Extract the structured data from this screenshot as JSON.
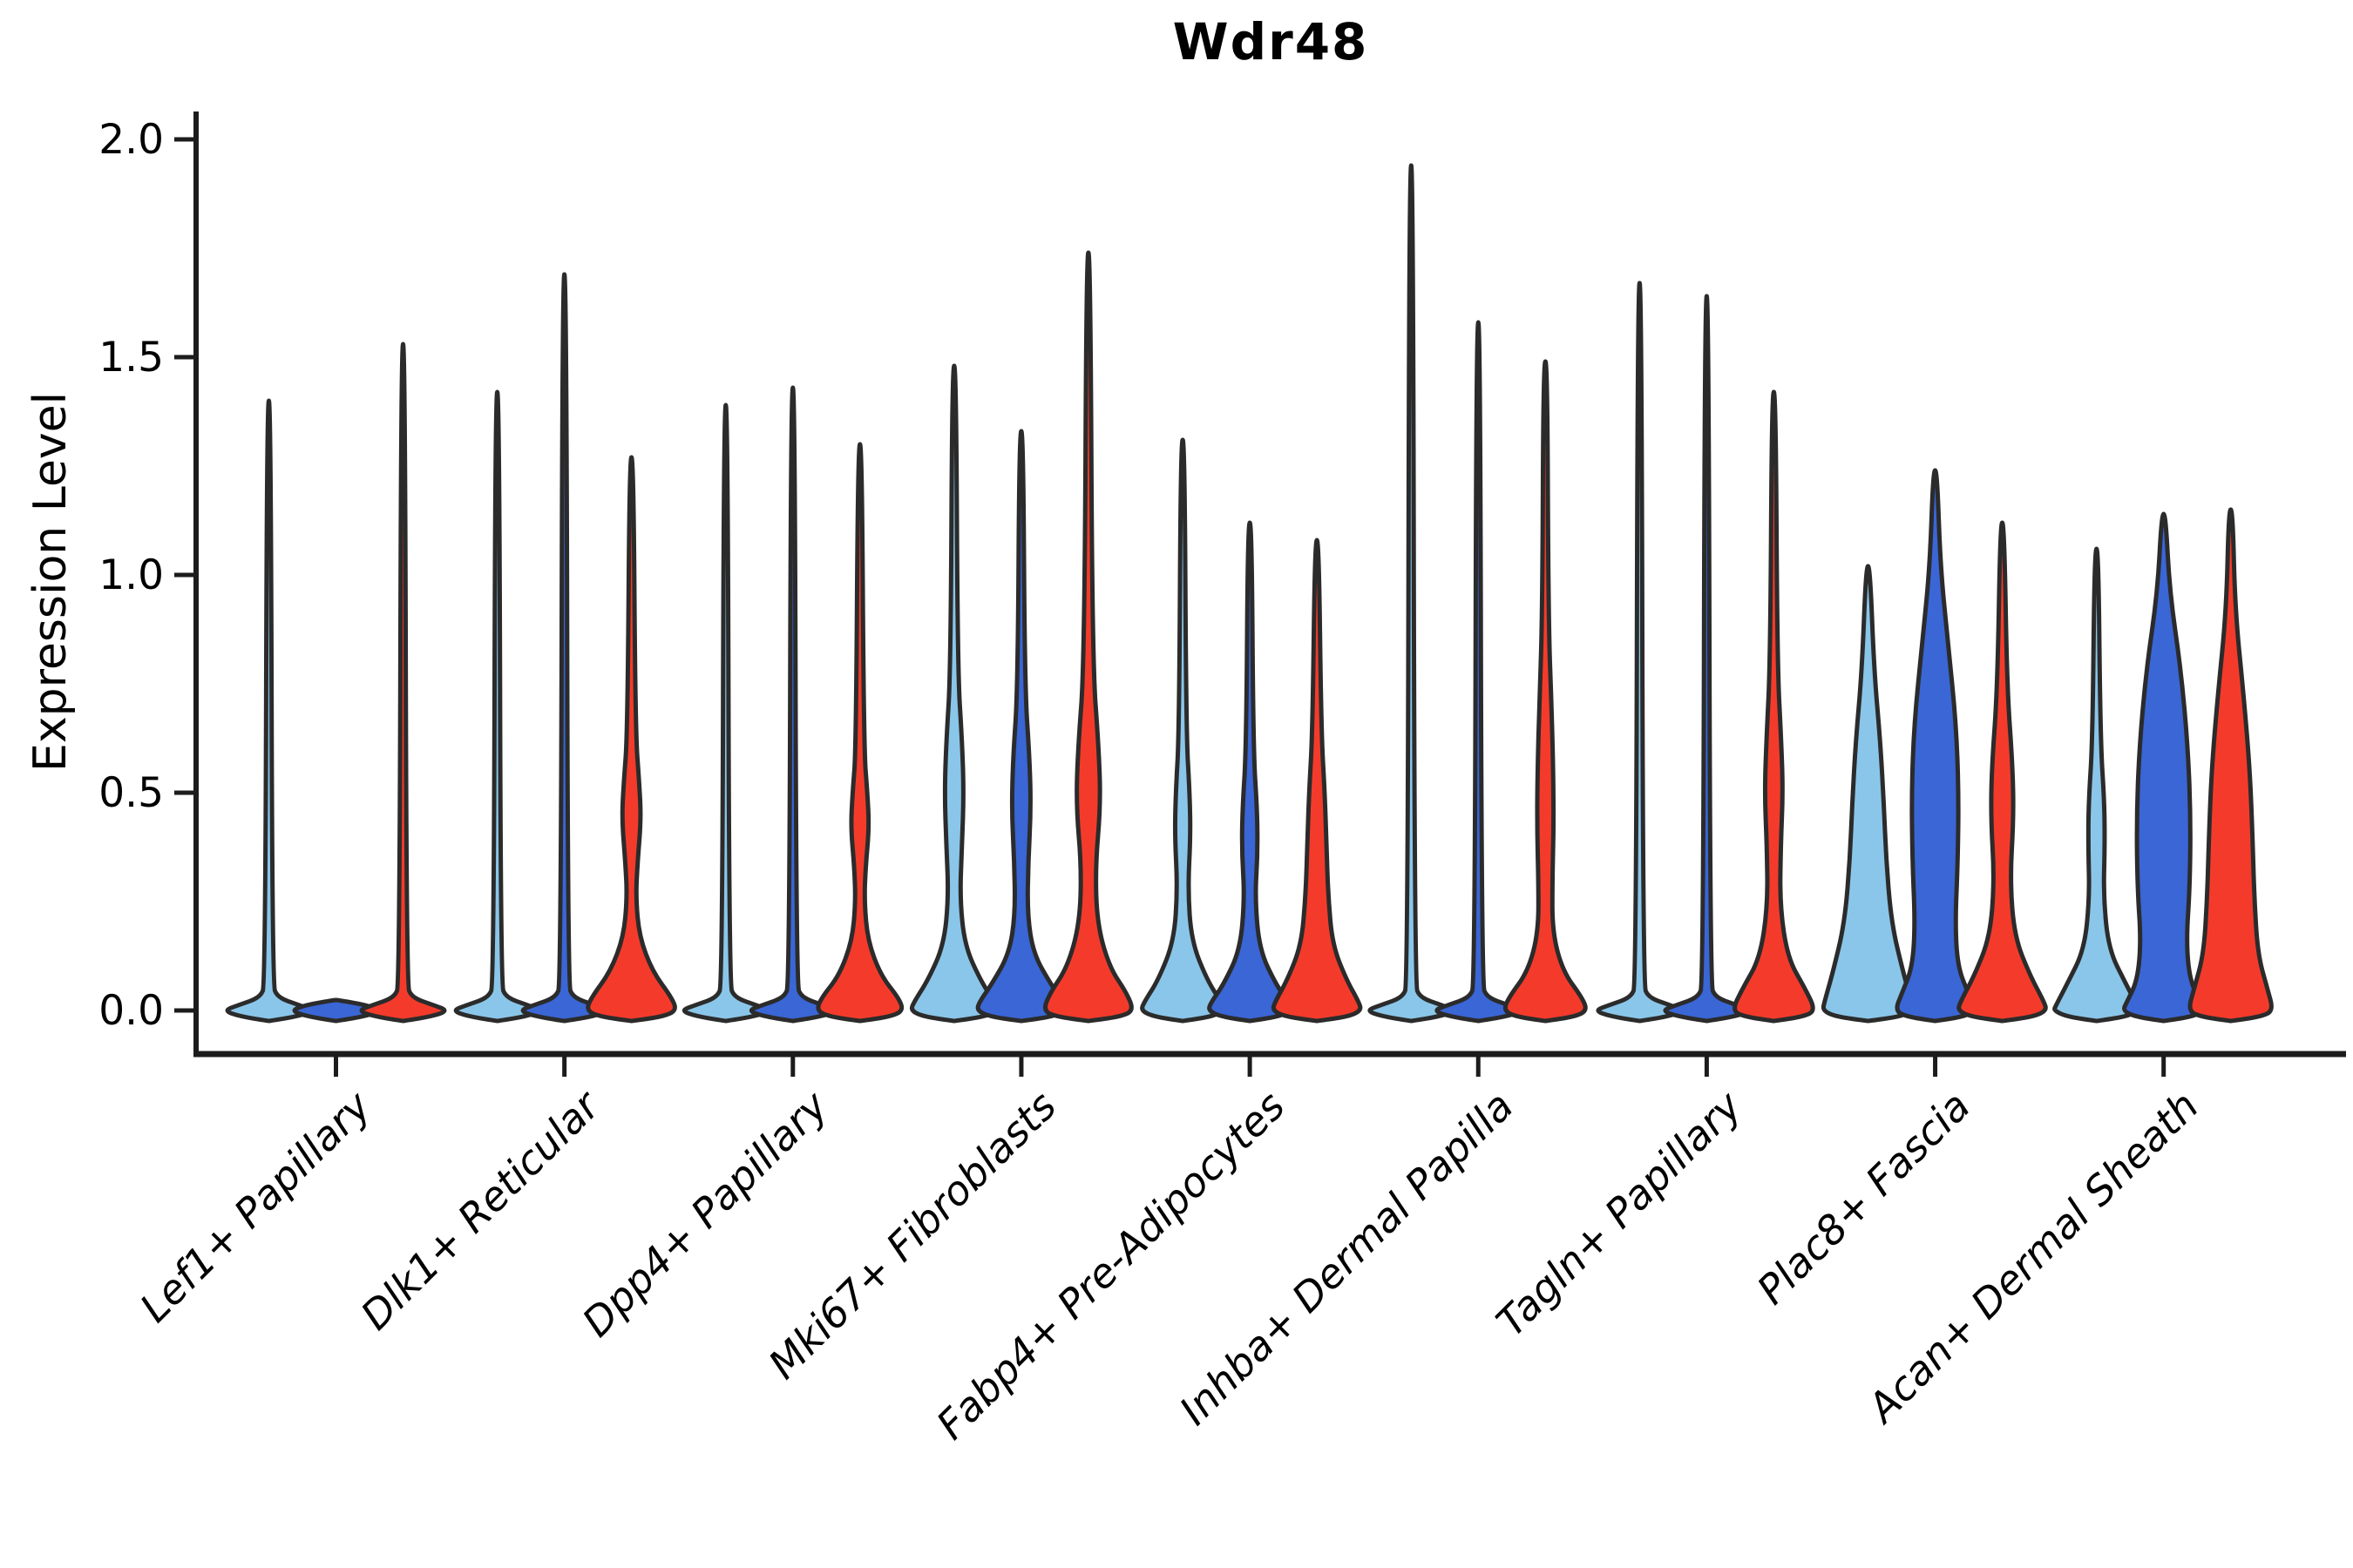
{
  "figure": {
    "title": "Wdr48",
    "ylabel": "Expression Level",
    "yticklabels": [
      "0.0",
      "0.5",
      "1.0",
      "1.5",
      "2.0"
    ]
  },
  "chart_data": {
    "type": "violin",
    "title": "Wdr48",
    "xlabel": "",
    "ylabel": "Expression Level",
    "ylim": [
      0,
      2.05
    ],
    "yticks": [
      0.0,
      0.5,
      1.0,
      1.5,
      2.0
    ],
    "grid": false,
    "legend": "none",
    "categories": [
      "Lef1+ Papillary",
      "Dlk1+ Reticular",
      "Dpp4+ Papillary",
      "Mki67+ Fibroblasts",
      "Fabp4+ Pre-Adipocytes",
      "Inhba+ Dermal Papilla",
      "Tagln+ Papillary",
      "Plac8+ Fascia",
      "Acan+ Dermal Sheath"
    ],
    "series": [
      {
        "id": "light_blue",
        "color": "#8AC6E9"
      },
      {
        "id": "blue",
        "color": "#3A66D6"
      },
      {
        "id": "red",
        "color": "#F43B2B"
      }
    ],
    "outline_color": "#2B2B2B",
    "violins": [
      {
        "category": "Lef1+ Papillary",
        "series": "light_blue",
        "max_expression": 1.4,
        "profile": [
          [
            1.4,
            2.2
          ],
          [
            0.06,
            4
          ],
          [
            0.03,
            10
          ],
          [
            0.013,
            34
          ],
          [
            0,
            52
          ],
          [
            -0.013,
            34
          ],
          [
            -0.024,
            0
          ]
        ]
      },
      {
        "category": "Lef1+ Papillary",
        "series": "blue",
        "max_expression": null,
        "profile": [
          [
            0.024,
            2
          ],
          [
            0.013,
            34
          ],
          [
            0,
            52
          ],
          [
            -0.013,
            34
          ],
          [
            -0.024,
            0
          ]
        ]
      },
      {
        "category": "Lef1+ Papillary",
        "series": "red",
        "max_expression": 1.53,
        "profile": [
          [
            1.53,
            2.2
          ],
          [
            0.06,
            4
          ],
          [
            0.03,
            10
          ],
          [
            0.013,
            34
          ],
          [
            0,
            52
          ],
          [
            -0.013,
            34
          ],
          [
            -0.024,
            0
          ]
        ]
      },
      {
        "category": "Dlk1+ Reticular",
        "series": "light_blue",
        "max_expression": 1.42,
        "profile": [
          [
            1.42,
            2.2
          ],
          [
            0.06,
            4
          ],
          [
            0.03,
            10
          ],
          [
            0.013,
            34
          ],
          [
            0,
            52
          ],
          [
            -0.013,
            34
          ],
          [
            -0.024,
            0
          ]
        ]
      },
      {
        "category": "Dlk1+ Reticular",
        "series": "blue",
        "max_expression": 1.69,
        "profile": [
          [
            1.69,
            2.2
          ],
          [
            0.06,
            4
          ],
          [
            0.03,
            10
          ],
          [
            0.013,
            34
          ],
          [
            0,
            52
          ],
          [
            -0.013,
            34
          ],
          [
            -0.024,
            0
          ]
        ]
      },
      {
        "category": "Dlk1+ Reticular",
        "series": "red",
        "max_expression": 1.27,
        "profile": [
          [
            1.27,
            2.2
          ],
          [
            0.64,
            4.5
          ],
          [
            0.52,
            9
          ],
          [
            0.44,
            11
          ],
          [
            0.34,
            7
          ],
          [
            0.26,
            5
          ],
          [
            0.17,
            9
          ],
          [
            0.09,
            24
          ],
          [
            0.03,
            46
          ],
          [
            0,
            52
          ],
          [
            -0.014,
            36
          ],
          [
            -0.024,
            0
          ]
        ]
      },
      {
        "category": "Dpp4+ Papillary",
        "series": "light_blue",
        "max_expression": 1.39,
        "profile": [
          [
            1.39,
            2.2
          ],
          [
            0.06,
            4
          ],
          [
            0.03,
            10
          ],
          [
            0.013,
            34
          ],
          [
            0,
            52
          ],
          [
            -0.013,
            34
          ],
          [
            -0.024,
            0
          ]
        ]
      },
      {
        "category": "Dpp4+ Papillary",
        "series": "blue",
        "max_expression": 1.43,
        "profile": [
          [
            1.43,
            2.2
          ],
          [
            0.06,
            4
          ],
          [
            0.03,
            10
          ],
          [
            0.013,
            34
          ],
          [
            0,
            52
          ],
          [
            -0.013,
            34
          ],
          [
            -0.024,
            0
          ]
        ]
      },
      {
        "category": "Dpp4+ Papillary",
        "series": "red",
        "max_expression": 1.3,
        "profile": [
          [
            1.3,
            2.2
          ],
          [
            0.6,
            4.5
          ],
          [
            0.5,
            8.5
          ],
          [
            0.42,
            10.5
          ],
          [
            0.33,
            6.5
          ],
          [
            0.25,
            5
          ],
          [
            0.16,
            9
          ],
          [
            0.08,
            24
          ],
          [
            0.03,
            44
          ],
          [
            0,
            50
          ],
          [
            -0.014,
            35
          ],
          [
            -0.024,
            0
          ]
        ]
      },
      {
        "category": "Mki67+ Fibroblasts",
        "series": "light_blue",
        "max_expression": 1.48,
        "profile": [
          [
            1.48,
            2.2
          ],
          [
            0.78,
            4
          ],
          [
            0.62,
            9
          ],
          [
            0.5,
            11
          ],
          [
            0.38,
            9
          ],
          [
            0.26,
            6.5
          ],
          [
            0.15,
            12
          ],
          [
            0.07,
            30
          ],
          [
            0.02,
            46
          ],
          [
            0,
            50
          ],
          [
            -0.014,
            35
          ],
          [
            -0.024,
            0
          ]
        ]
      },
      {
        "category": "Mki67+ Fibroblasts",
        "series": "blue",
        "max_expression": 1.33,
        "profile": [
          [
            1.33,
            2.2
          ],
          [
            0.74,
            4
          ],
          [
            0.58,
            9.5
          ],
          [
            0.46,
            11
          ],
          [
            0.34,
            8
          ],
          [
            0.22,
            7
          ],
          [
            0.13,
            14
          ],
          [
            0.06,
            34
          ],
          [
            0.02,
            48
          ],
          [
            0,
            51
          ],
          [
            -0.014,
            36
          ],
          [
            -0.024,
            0
          ]
        ]
      },
      {
        "category": "Mki67+ Fibroblasts",
        "series": "red",
        "max_expression": 1.74,
        "profile": [
          [
            1.74,
            2.2
          ],
          [
            0.8,
            4.5
          ],
          [
            0.6,
            12
          ],
          [
            0.47,
            14
          ],
          [
            0.33,
            8
          ],
          [
            0.2,
            10
          ],
          [
            0.1,
            24
          ],
          [
            0.04,
            44
          ],
          [
            0,
            52
          ],
          [
            -0.014,
            37
          ],
          [
            -0.024,
            0
          ]
        ]
      },
      {
        "category": "Fabp4+ Pre-Adipocytes",
        "series": "light_blue",
        "max_expression": 1.31,
        "profile": [
          [
            1.31,
            2.2
          ],
          [
            0.64,
            4
          ],
          [
            0.5,
            8
          ],
          [
            0.4,
            9
          ],
          [
            0.28,
            6
          ],
          [
            0.16,
            10
          ],
          [
            0.07,
            28
          ],
          [
            0.02,
            44
          ],
          [
            0,
            48
          ],
          [
            -0.014,
            33
          ],
          [
            -0.024,
            0
          ]
        ]
      },
      {
        "category": "Fabp4+ Pre-Adipocytes",
        "series": "blue",
        "max_expression": 1.12,
        "profile": [
          [
            1.12,
            2.2
          ],
          [
            0.6,
            4
          ],
          [
            0.46,
            8.5
          ],
          [
            0.36,
            9
          ],
          [
            0.26,
            6
          ],
          [
            0.14,
            11
          ],
          [
            0.06,
            30
          ],
          [
            0.02,
            44
          ],
          [
            0,
            48
          ],
          [
            -0.014,
            33
          ],
          [
            -0.024,
            0
          ]
        ]
      },
      {
        "category": "Fabp4+ Pre-Adipocytes",
        "series": "red",
        "max_expression": 1.08,
        "profile": [
          [
            1.08,
            2.2
          ],
          [
            0.64,
            5
          ],
          [
            0.5,
            9
          ],
          [
            0.38,
            11
          ],
          [
            0.26,
            13
          ],
          [
            0.15,
            18
          ],
          [
            0.07,
            34
          ],
          [
            0.02,
            48
          ],
          [
            0,
            51
          ],
          [
            -0.014,
            36
          ],
          [
            -0.024,
            0
          ]
        ]
      },
      {
        "category": "Inhba+ Dermal Papilla",
        "series": "light_blue",
        "max_expression": 1.94,
        "profile": [
          [
            1.94,
            2.2
          ],
          [
            0.06,
            4
          ],
          [
            0.03,
            10
          ],
          [
            0.013,
            34
          ],
          [
            0,
            52
          ],
          [
            -0.013,
            34
          ],
          [
            -0.024,
            0
          ]
        ]
      },
      {
        "category": "Inhba+ Dermal Papilla",
        "series": "blue",
        "max_expression": 1.58,
        "profile": [
          [
            1.58,
            2.2
          ],
          [
            0.06,
            4
          ],
          [
            0.03,
            10
          ],
          [
            0.013,
            34
          ],
          [
            0,
            52
          ],
          [
            -0.013,
            34
          ],
          [
            -0.024,
            0
          ]
        ]
      },
      {
        "category": "Inhba+ Dermal Papilla",
        "series": "red",
        "max_expression": 1.49,
        "profile": [
          [
            1.49,
            2.2
          ],
          [
            0.9,
            3.5
          ],
          [
            0.7,
            7
          ],
          [
            0.55,
            9
          ],
          [
            0.42,
            9.5
          ],
          [
            0.3,
            8
          ],
          [
            0.18,
            8
          ],
          [
            0.09,
            20
          ],
          [
            0.03,
            42
          ],
          [
            0,
            48
          ],
          [
            -0.014,
            34
          ],
          [
            -0.024,
            0
          ]
        ]
      },
      {
        "category": "Tagln+ Papillary",
        "series": "light_blue",
        "max_expression": 1.67,
        "profile": [
          [
            1.67,
            2.2
          ],
          [
            0.06,
            4
          ],
          [
            0.03,
            10
          ],
          [
            0.013,
            34
          ],
          [
            0,
            52
          ],
          [
            -0.013,
            34
          ],
          [
            -0.024,
            0
          ]
        ]
      },
      {
        "category": "Tagln+ Papillary",
        "series": "blue",
        "max_expression": 1.64,
        "profile": [
          [
            1.64,
            2.2
          ],
          [
            0.06,
            4
          ],
          [
            0.03,
            10
          ],
          [
            0.013,
            34
          ],
          [
            0,
            52
          ],
          [
            -0.013,
            34
          ],
          [
            -0.024,
            0
          ]
        ]
      },
      {
        "category": "Tagln+ Papillary",
        "series": "red",
        "max_expression": 1.42,
        "profile": [
          [
            1.42,
            2.2
          ],
          [
            0.8,
            4
          ],
          [
            0.62,
            8.5
          ],
          [
            0.5,
            10.5
          ],
          [
            0.38,
            8
          ],
          [
            0.24,
            7
          ],
          [
            0.12,
            16
          ],
          [
            0.05,
            36
          ],
          [
            0,
            48
          ],
          [
            -0.014,
            34
          ],
          [
            -0.024,
            0
          ]
        ]
      },
      {
        "category": "Plac8+ Fascia",
        "series": "light_blue",
        "max_expression": 1.02,
        "profile": [
          [
            1.02,
            2.2
          ],
          [
            0.78,
            7
          ],
          [
            0.62,
            14
          ],
          [
            0.48,
            18
          ],
          [
            0.34,
            21
          ],
          [
            0.2,
            27
          ],
          [
            0.09,
            40
          ],
          [
            0.02,
            50
          ],
          [
            0,
            52
          ],
          [
            -0.014,
            37
          ],
          [
            -0.024,
            0
          ]
        ]
      },
      {
        "category": "Plac8+ Fascia",
        "series": "blue",
        "max_expression": 1.24,
        "profile": [
          [
            1.24,
            2.2
          ],
          [
            1.02,
            6
          ],
          [
            0.84,
            15
          ],
          [
            0.66,
            24
          ],
          [
            0.5,
            27
          ],
          [
            0.34,
            26
          ],
          [
            0.2,
            23
          ],
          [
            0.1,
            26
          ],
          [
            0.04,
            38
          ],
          [
            0,
            46
          ],
          [
            -0.014,
            33
          ],
          [
            -0.024,
            0
          ]
        ]
      },
      {
        "category": "Plac8+ Fascia",
        "series": "red",
        "max_expression": 1.12,
        "profile": [
          [
            1.12,
            2.2
          ],
          [
            0.74,
            5.5
          ],
          [
            0.56,
            12
          ],
          [
            0.44,
            13
          ],
          [
            0.3,
            9
          ],
          [
            0.17,
            14
          ],
          [
            0.08,
            32
          ],
          [
            0.02,
            48
          ],
          [
            0,
            51
          ],
          [
            -0.014,
            36
          ],
          [
            -0.024,
            0
          ]
        ]
      },
      {
        "category": "Acan+ Dermal Sheath",
        "series": "light_blue",
        "max_expression": 1.06,
        "profile": [
          [
            1.06,
            2.2
          ],
          [
            0.62,
            4.5
          ],
          [
            0.48,
            9
          ],
          [
            0.38,
            9.5
          ],
          [
            0.26,
            8
          ],
          [
            0.14,
            14
          ],
          [
            0.06,
            34
          ],
          [
            0.01,
            47
          ],
          [
            0,
            49
          ],
          [
            -0.014,
            34
          ],
          [
            -0.024,
            0
          ]
        ]
      },
      {
        "category": "Acan+ Dermal Sheath",
        "series": "blue",
        "max_expression": 1.14,
        "profile": [
          [
            1.14,
            2.2
          ],
          [
            0.96,
            7
          ],
          [
            0.78,
            20
          ],
          [
            0.6,
            28
          ],
          [
            0.44,
            31
          ],
          [
            0.28,
            30
          ],
          [
            0.16,
            26
          ],
          [
            0.07,
            30
          ],
          [
            0.02,
            42
          ],
          [
            0,
            47
          ],
          [
            -0.014,
            33
          ],
          [
            -0.024,
            0
          ]
        ]
      },
      {
        "category": "Acan+ Dermal Sheath",
        "series": "red",
        "max_expression": 1.15,
        "profile": [
          [
            1.15,
            2.2
          ],
          [
            0.92,
            5
          ],
          [
            0.72,
            15
          ],
          [
            0.55,
            22
          ],
          [
            0.4,
            25
          ],
          [
            0.26,
            27
          ],
          [
            0.13,
            31
          ],
          [
            0.05,
            42
          ],
          [
            0,
            49
          ],
          [
            -0.014,
            35
          ],
          [
            -0.024,
            0
          ]
        ]
      }
    ]
  }
}
